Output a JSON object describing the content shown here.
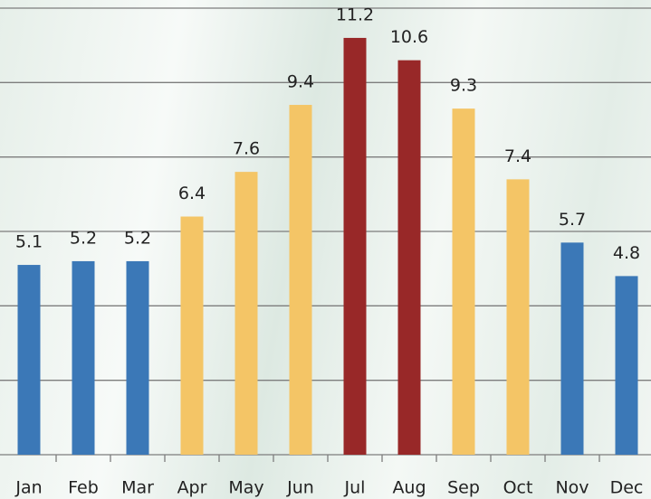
{
  "chart_data": {
    "type": "bar",
    "categories": [
      "Jan",
      "Feb",
      "Mar",
      "Apr",
      "May",
      "Jun",
      "Jul",
      "Aug",
      "Sep",
      "Oct",
      "Nov",
      "Dec"
    ],
    "values": [
      5.1,
      5.2,
      5.2,
      6.4,
      7.6,
      9.4,
      11.2,
      10.6,
      9.3,
      7.4,
      5.7,
      4.8
    ],
    "colors": [
      "#3b78b7",
      "#3b78b7",
      "#3b78b7",
      "#f4c566",
      "#f4c566",
      "#f4c566",
      "#982828",
      "#982828",
      "#f4c566",
      "#f4c566",
      "#3b78b7",
      "#3b78b7"
    ],
    "ylim": [
      0,
      12
    ],
    "yticks": [
      0,
      2,
      4,
      6,
      8,
      10,
      12
    ],
    "grid": true
  }
}
